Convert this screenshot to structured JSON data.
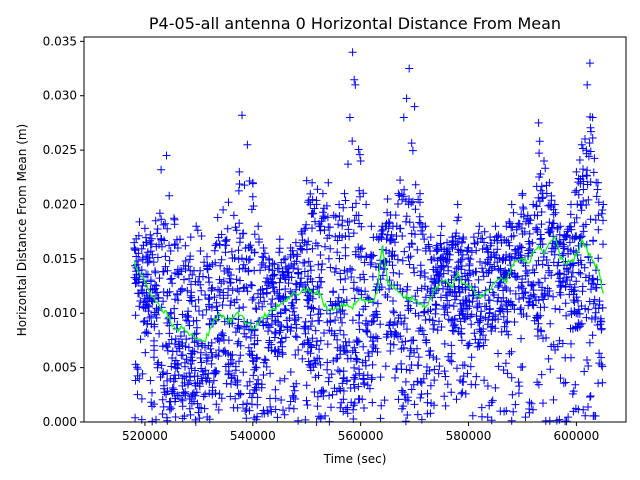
{
  "chart_data": {
    "type": "scatter",
    "title": "P4-05-all antenna 0 Horizontal Distance From Mean",
    "xlabel": "Time (sec)",
    "ylabel": "Horizontal Distance From Mean (m)",
    "xlim": [
      508700,
      609200
    ],
    "ylim": [
      0,
      0.0354
    ],
    "xticks": [
      520000,
      540000,
      560000,
      580000,
      600000
    ],
    "xtick_labels": [
      "520000",
      "540000",
      "560000",
      "580000",
      "600000"
    ],
    "yticks": [
      0.0,
      0.005,
      0.01,
      0.015,
      0.02,
      0.025,
      0.03,
      0.035
    ],
    "ytick_labels": [
      "0.000",
      "0.005",
      "0.010",
      "0.015",
      "0.020",
      "0.025",
      "0.030",
      "0.035"
    ],
    "grid": false,
    "legend": "none",
    "colors": {
      "points": "#0000ff",
      "trend": "#00ff00"
    },
    "series": [
      {
        "style": "plus-markers",
        "color": "#0000ff",
        "x_range": [
          518000,
          605000
        ],
        "envelope_max": [
          [
            518000,
            0.0165
          ],
          [
            519000,
            0.0184
          ],
          [
            520000,
            0.0178
          ],
          [
            521000,
            0.0172
          ],
          [
            522000,
            0.0185
          ],
          [
            523000,
            0.0232
          ],
          [
            524000,
            0.0245
          ],
          [
            524500,
            0.0208
          ],
          [
            525500,
            0.0186
          ],
          [
            526500,
            0.0168
          ],
          [
            527500,
            0.0162
          ],
          [
            528500,
            0.017
          ],
          [
            529500,
            0.018
          ],
          [
            530500,
            0.0171
          ],
          [
            531500,
            0.0152
          ],
          [
            532500,
            0.0145
          ],
          [
            533500,
            0.0188
          ],
          [
            534500,
            0.0195
          ],
          [
            535500,
            0.0202
          ],
          [
            536500,
            0.019
          ],
          [
            537500,
            0.023
          ],
          [
            538000,
            0.0282
          ],
          [
            539000,
            0.0255
          ],
          [
            540000,
            0.022
          ],
          [
            541000,
            0.018
          ],
          [
            542000,
            0.016
          ],
          [
            543000,
            0.015
          ],
          [
            544000,
            0.0145
          ],
          [
            545000,
            0.0168
          ],
          [
            546000,
            0.015
          ],
          [
            547000,
            0.016
          ],
          [
            548000,
            0.0165
          ],
          [
            549000,
            0.0175
          ],
          [
            550000,
            0.0222
          ],
          [
            551000,
            0.022
          ],
          [
            552000,
            0.0214
          ],
          [
            553000,
            0.021
          ],
          [
            554000,
            0.022
          ],
          [
            555000,
            0.019
          ],
          [
            556000,
            0.02
          ],
          [
            557000,
            0.021
          ],
          [
            558000,
            0.028
          ],
          [
            558500,
            0.034
          ],
          [
            559000,
            0.031
          ],
          [
            560000,
            0.024
          ],
          [
            561000,
            0.02
          ],
          [
            562000,
            0.018
          ],
          [
            563000,
            0.017
          ],
          [
            564000,
            0.018
          ],
          [
            565000,
            0.0205
          ],
          [
            566000,
            0.018
          ],
          [
            567000,
            0.021
          ],
          [
            568000,
            0.028
          ],
          [
            569000,
            0.0325
          ],
          [
            570000,
            0.029
          ],
          [
            571000,
            0.021
          ],
          [
            572000,
            0.018
          ],
          [
            573000,
            0.017
          ],
          [
            574000,
            0.016
          ],
          [
            575000,
            0.018
          ],
          [
            576000,
            0.0165
          ],
          [
            577000,
            0.017
          ],
          [
            578000,
            0.02
          ],
          [
            579000,
            0.017
          ],
          [
            580000,
            0.016
          ],
          [
            581000,
            0.017
          ],
          [
            582000,
            0.018
          ],
          [
            583000,
            0.0175
          ],
          [
            584000,
            0.017
          ],
          [
            585000,
            0.018
          ],
          [
            586000,
            0.017
          ],
          [
            587000,
            0.018
          ],
          [
            588000,
            0.02
          ],
          [
            589000,
            0.018
          ],
          [
            590000,
            0.021
          ],
          [
            591000,
            0.019
          ],
          [
            592000,
            0.02
          ],
          [
            593000,
            0.0275
          ],
          [
            594000,
            0.024
          ],
          [
            595000,
            0.022
          ],
          [
            596000,
            0.02
          ],
          [
            597000,
            0.018
          ],
          [
            598000,
            0.017
          ],
          [
            599000,
            0.02
          ],
          [
            600000,
            0.023
          ],
          [
            601000,
            0.0255
          ],
          [
            602000,
            0.031
          ],
          [
            602500,
            0.033
          ],
          [
            603000,
            0.028
          ],
          [
            604000,
            0.022
          ],
          [
            605000,
            0.02
          ]
        ],
        "envelope_min": 0.0
      },
      {
        "style": "line",
        "color": "#00ff00",
        "x": [
          518000,
          519000,
          520000,
          521000,
          522000,
          523000,
          524000,
          525000,
          526000,
          527000,
          528000,
          529000,
          530000,
          531000,
          532000,
          533000,
          534000,
          535000,
          536000,
          537000,
          538000,
          539000,
          540000,
          541000,
          542000,
          543000,
          544000,
          545000,
          546000,
          547000,
          548000,
          549000,
          550000,
          551000,
          552000,
          553000,
          554000,
          555000,
          556000,
          557000,
          558000,
          559000,
          560000,
          561000,
          562000,
          563000,
          564000,
          565000,
          566000,
          567000,
          568000,
          569000,
          570000,
          571000,
          572000,
          573000,
          574000,
          575000,
          576000,
          577000,
          578000,
          579000,
          580000,
          581000,
          582000,
          583000,
          584000,
          585000,
          586000,
          587000,
          588000,
          589000,
          590000,
          591000,
          592000,
          593000,
          594000,
          595000,
          596000,
          597000,
          598000,
          599000,
          600000,
          601000,
          602000,
          603000,
          604000,
          605000
        ],
        "y": [
          0.0148,
          0.0138,
          0.0128,
          0.0118,
          0.011,
          0.0104,
          0.0102,
          0.0088,
          0.0085,
          0.0086,
          0.0082,
          0.0079,
          0.0076,
          0.0074,
          0.0085,
          0.0095,
          0.0099,
          0.0094,
          0.0092,
          0.01,
          0.0098,
          0.009,
          0.0086,
          0.009,
          0.0096,
          0.01,
          0.0104,
          0.0108,
          0.0112,
          0.0116,
          0.0118,
          0.012,
          0.0122,
          0.0118,
          0.0121,
          0.011,
          0.0103,
          0.0103,
          0.0105,
          0.0108,
          0.0106,
          0.0108,
          0.0114,
          0.0112,
          0.011,
          0.0118,
          0.0162,
          0.0128,
          0.0126,
          0.0119,
          0.0115,
          0.0114,
          0.0112,
          0.0108,
          0.0105,
          0.0115,
          0.0124,
          0.013,
          0.0128,
          0.0124,
          0.0137,
          0.0128,
          0.0125,
          0.0121,
          0.0115,
          0.0118,
          0.0122,
          0.0129,
          0.0133,
          0.0128,
          0.0144,
          0.0148,
          0.015,
          0.0146,
          0.0155,
          0.0162,
          0.0155,
          0.0165,
          0.017,
          0.015,
          0.0145,
          0.0147,
          0.0153,
          0.0168,
          0.0158,
          0.0148,
          0.014,
          0.0118
        ]
      }
    ]
  }
}
